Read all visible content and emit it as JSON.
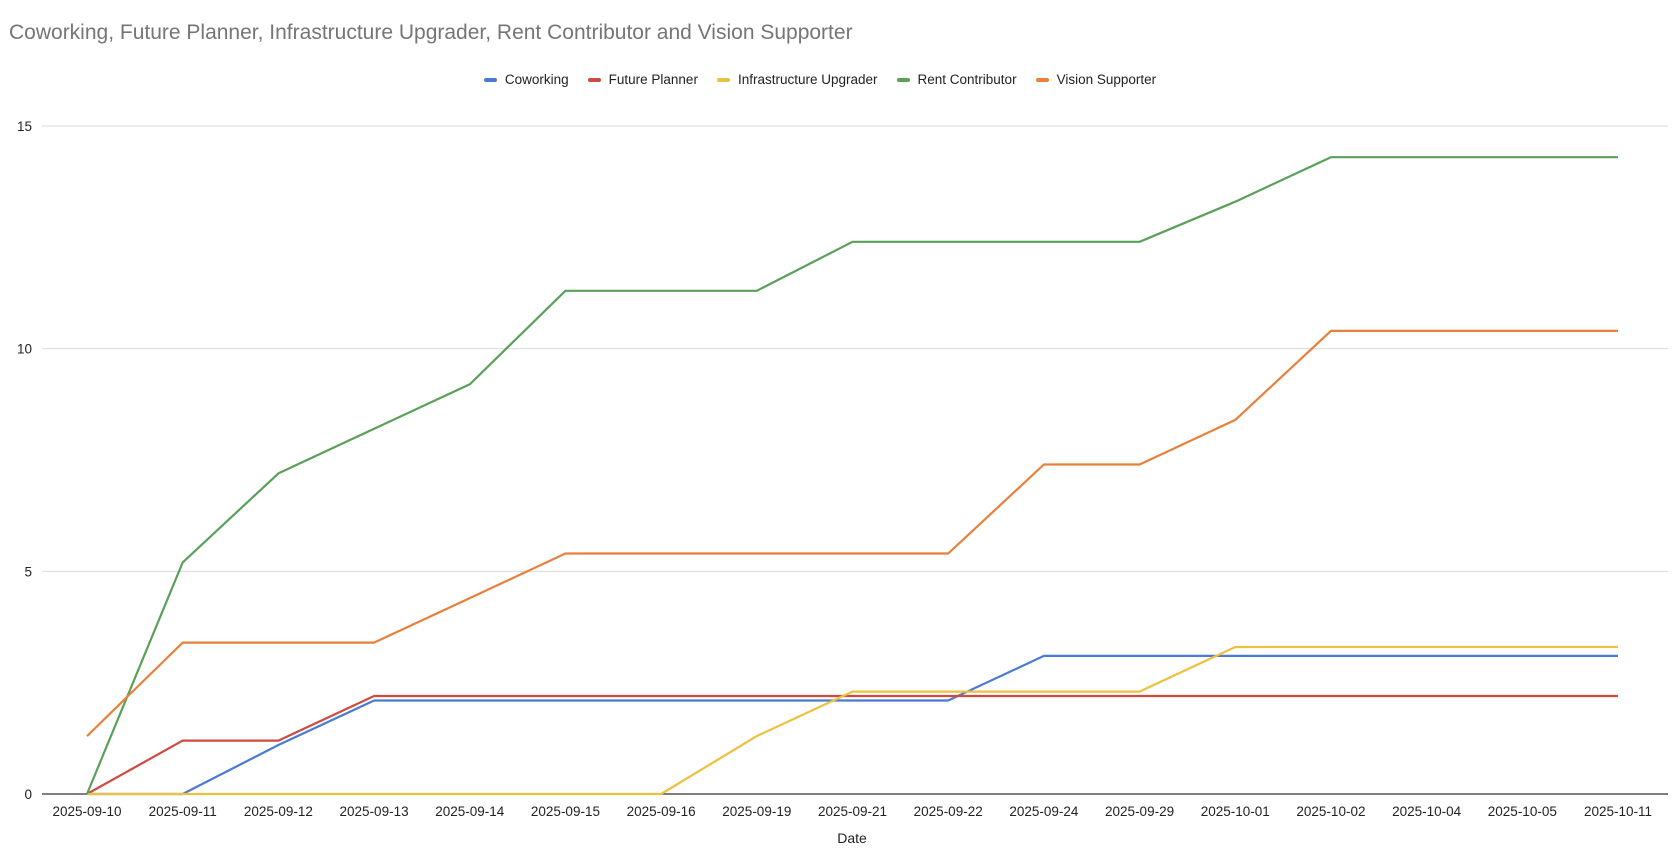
{
  "chart_data": {
    "type": "line",
    "title": "Coworking, Future Planner, Infrastructure Upgrader, Rent Contributor and Vision Supporter",
    "xlabel": "Date",
    "ylabel": "",
    "ylim": [
      0,
      15
    ],
    "yticks": [
      "0",
      "5",
      "10",
      "15"
    ],
    "grid": true,
    "legend_position": "top-center",
    "categories": [
      "2025-09-10",
      "2025-09-11",
      "2025-09-12",
      "2025-09-13",
      "2025-09-14",
      "2025-09-15",
      "2025-09-16",
      "2025-09-19",
      "2025-09-21",
      "2025-09-22",
      "2025-09-24",
      "2025-09-29",
      "2025-10-01",
      "2025-10-02",
      "2025-10-04",
      "2025-10-05",
      "2025-10-11"
    ],
    "series": [
      {
        "name": "Coworking",
        "color": "#4a7bd4",
        "values": [
          0,
          0,
          1.1,
          2.1,
          2.1,
          2.1,
          2.1,
          2.1,
          2.1,
          2.1,
          3.1,
          3.1,
          3.1,
          3.1,
          3.1,
          3.1,
          3.1
        ]
      },
      {
        "name": "Future Planner",
        "color": "#cf4b3f",
        "values": [
          0,
          1.2,
          1.2,
          2.2,
          2.2,
          2.2,
          2.2,
          2.2,
          2.2,
          2.2,
          2.2,
          2.2,
          2.2,
          2.2,
          2.2,
          2.2,
          2.2
        ]
      },
      {
        "name": "Infrastructure Upgrader",
        "color": "#ecc13e",
        "values": [
          0,
          0,
          0,
          0,
          0,
          0,
          0,
          1.3,
          2.3,
          2.3,
          2.3,
          2.3,
          3.3,
          3.3,
          3.3,
          3.3,
          3.3
        ]
      },
      {
        "name": "Rent Contributor",
        "color": "#5aa05a",
        "values": [
          0,
          5.2,
          7.2,
          8.2,
          9.2,
          11.3,
          11.3,
          11.3,
          12.4,
          12.4,
          12.4,
          12.4,
          13.3,
          14.3,
          14.3,
          14.3,
          14.3
        ]
      },
      {
        "name": "Vision Supporter",
        "color": "#e8803a",
        "values": [
          1.3,
          3.4,
          3.4,
          3.4,
          4.4,
          5.4,
          5.4,
          5.4,
          5.4,
          5.4,
          7.4,
          7.4,
          8.4,
          10.4,
          10.4,
          10.4,
          10.4
        ]
      }
    ]
  }
}
